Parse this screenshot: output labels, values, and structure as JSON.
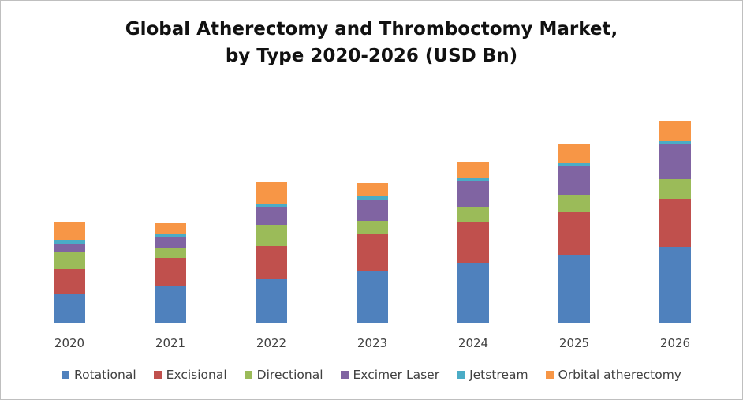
{
  "chart_data": {
    "type": "bar",
    "stacked": true,
    "title_lines": [
      "Global Atherectomy and Thromboctomy Market,",
      "by Type 2020-2026 (USD Bn)"
    ],
    "categories": [
      "2020",
      "2021",
      "2022",
      "2023",
      "2024",
      "2025",
      "2026"
    ],
    "series": [
      {
        "name": "Rotational",
        "color": "#4F81BD",
        "values": [
          36,
          46,
          56,
          66,
          76,
          86,
          96
        ]
      },
      {
        "name": "Excisional",
        "color": "#C0504D",
        "values": [
          32,
          36,
          41,
          46,
          52,
          54,
          61
        ]
      },
      {
        "name": "Directional",
        "color": "#9BBB59",
        "values": [
          22,
          13,
          27,
          17,
          19,
          22,
          25
        ]
      },
      {
        "name": "Excimer Laser",
        "color": "#8064A2",
        "values": [
          10,
          14,
          22,
          27,
          32,
          37,
          44
        ]
      },
      {
        "name": "Jetstream",
        "color": "#4BACC6",
        "values": [
          5,
          4,
          4,
          4,
          4,
          4,
          4
        ]
      },
      {
        "name": "Orbital atherectomy",
        "color": "#F79646",
        "values": [
          22,
          13,
          28,
          17,
          21,
          23,
          26
        ]
      }
    ],
    "xlabel": "",
    "ylabel": "",
    "ylim": [
      0,
      280
    ],
    "grid": false,
    "legend_position": "bottom"
  }
}
